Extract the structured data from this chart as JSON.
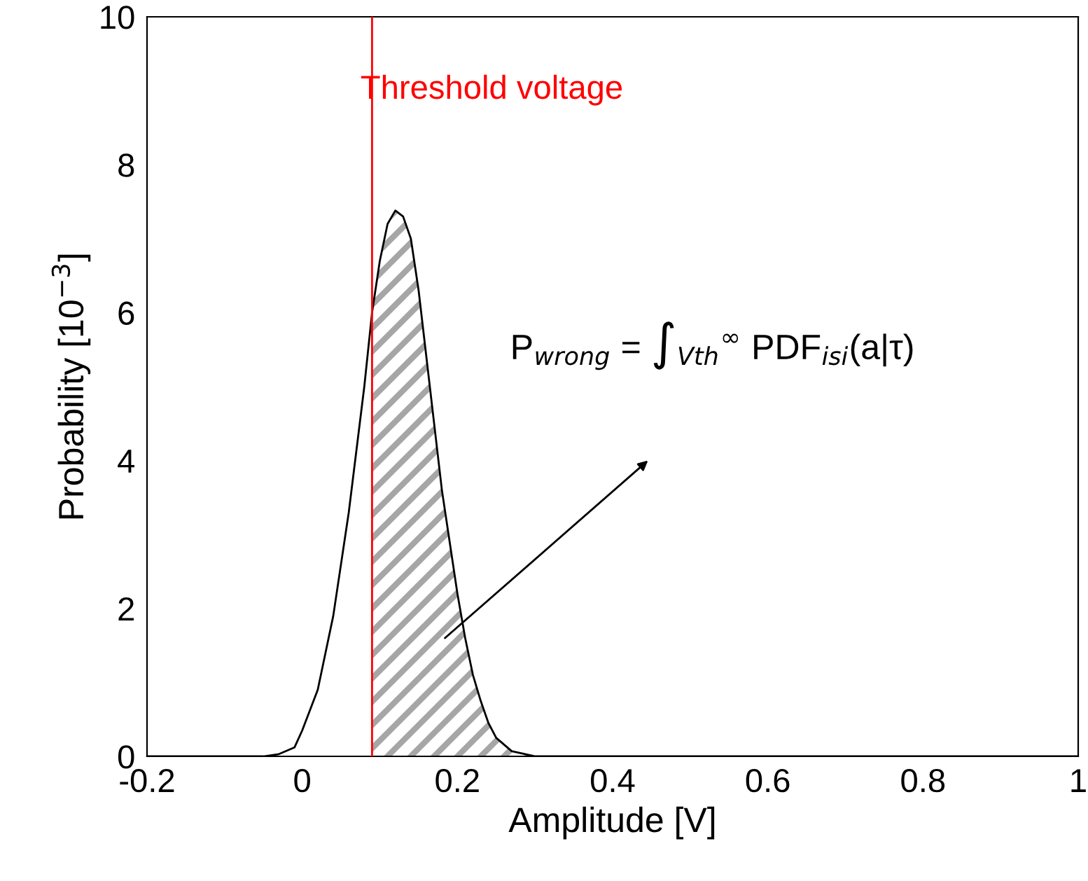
{
  "chart_data": {
    "type": "line",
    "xlabel": "Amplitude [V]",
    "ylabel": "Probability [10$^{−3}$]",
    "xlim": [
      -0.2,
      1
    ],
    "xticks": [
      -0.2,
      0,
      0.2,
      0.4,
      0.6,
      0.8,
      1
    ],
    "ylim": [
      0,
      10
    ],
    "yticks": [
      0,
      2,
      4,
      6,
      8,
      10
    ],
    "grid": false,
    "legend": false,
    "marker": "none",
    "line_style": "solid",
    "series": [
      {
        "type": "area",
        "color": "#a6a6a6",
        "x": [
          0.09,
          0.1,
          0.11,
          0.12,
          0.13,
          0.14,
          0.15,
          0.16,
          0.17,
          0.18,
          0.19,
          0.2,
          0.21,
          0.22,
          0.23,
          0.24,
          0.25,
          0.27,
          0.3
        ],
        "values": [
          6.0,
          6.7,
          7.2,
          7.38,
          7.3,
          7.0,
          6.3,
          5.4,
          4.5,
          3.6,
          2.9,
          2.2,
          1.6,
          1.1,
          0.75,
          0.45,
          0.25,
          0.07,
          0
        ]
      },
      {
        "type": "line",
        "color": "#000000",
        "x": [
          -0.2,
          -0.05,
          -0.03,
          -0.01,
          0,
          0.02,
          0.04,
          0.06,
          0.08,
          0.09,
          0.1,
          0.11,
          0.12,
          0.13,
          0.14,
          0.15,
          0.16,
          0.17,
          0.18,
          0.19,
          0.2,
          0.21,
          0.22,
          0.23,
          0.24,
          0.25,
          0.27,
          0.3,
          1
        ],
        "values": [
          0,
          0,
          0.03,
          0.12,
          0.35,
          0.9,
          1.9,
          3.3,
          5.0,
          6.0,
          6.7,
          7.2,
          7.38,
          7.3,
          7.0,
          6.3,
          5.4,
          4.5,
          3.6,
          2.9,
          2.2,
          1.6,
          1.1,
          0.75,
          0.45,
          0.25,
          0.07,
          0,
          0
        ]
      }
    ],
    "ref_lines": [
      {
        "axis": "x",
        "value": 0.09,
        "label": "Threshold voltage",
        "color": "#ff0000"
      }
    ],
    "annotations": [
      "P$_{wrong}$ = ∫$_{Vth}$$^{∞}$ PDF$_{isi}$(a|τ)"
    ]
  }
}
